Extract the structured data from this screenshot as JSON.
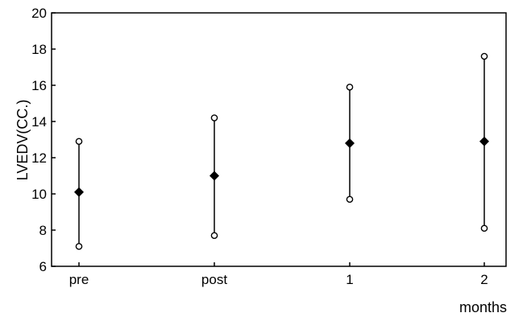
{
  "chart_data": {
    "type": "scatter",
    "title": "",
    "xlabel": "months",
    "ylabel": "LVEDV(CC.)",
    "categories": [
      "pre",
      "post",
      "1",
      "2"
    ],
    "series": [
      {
        "mean": [
          10.1,
          11.0,
          12.8,
          12.9
        ],
        "upper": [
          12.9,
          14.2,
          15.9,
          17.6
        ],
        "lower": [
          7.1,
          7.7,
          9.7,
          8.1
        ]
      }
    ],
    "ylim": [
      6,
      20
    ],
    "yticks": [
      "6",
      "8",
      "10",
      "12",
      "14",
      "16",
      "18",
      "20"
    ],
    "grid": false,
    "legend": "none"
  }
}
